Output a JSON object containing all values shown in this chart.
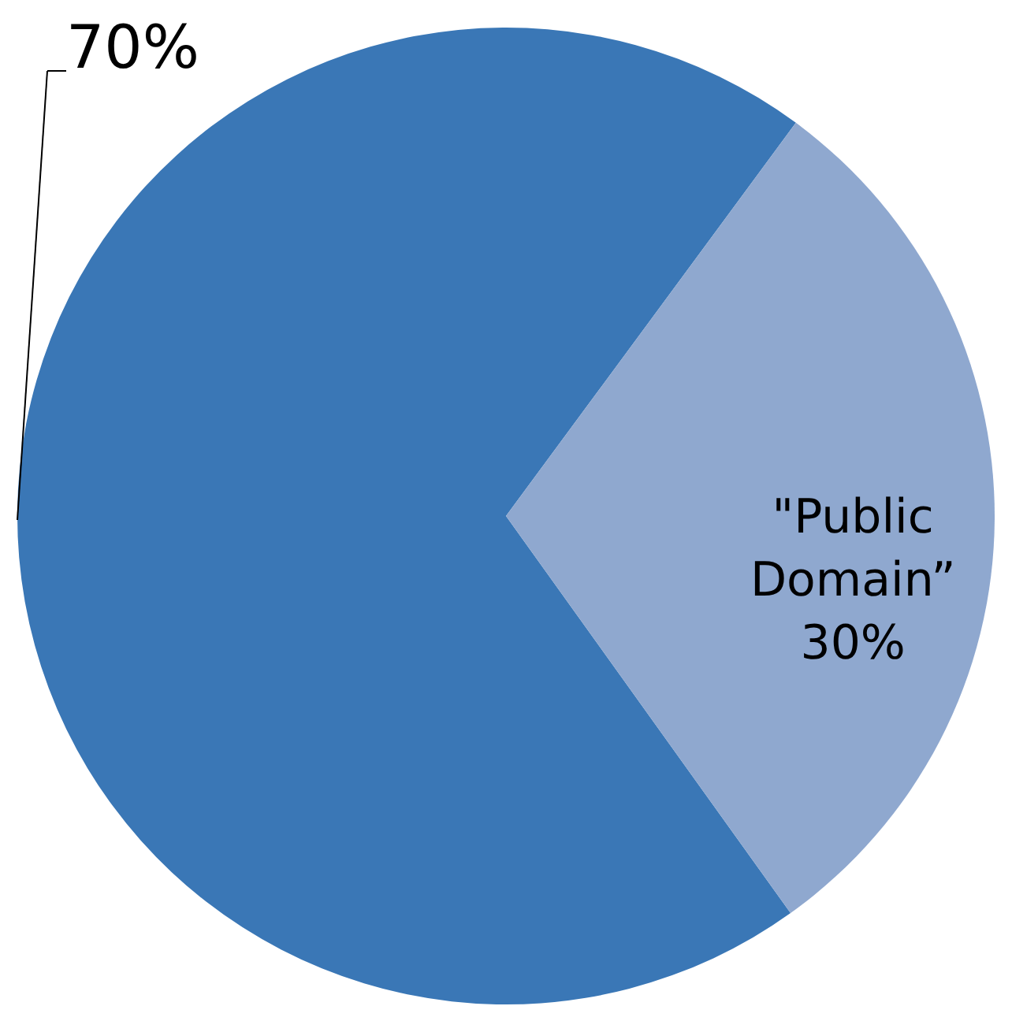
{
  "chart_data": {
    "type": "pie",
    "categories": [
      null,
      "\"Public Domain”"
    ],
    "values": [
      70,
      30
    ],
    "colors": [
      "#3a77b6",
      "#8fa8cf"
    ],
    "value_labels": [
      "70%",
      "30%"
    ]
  }
}
